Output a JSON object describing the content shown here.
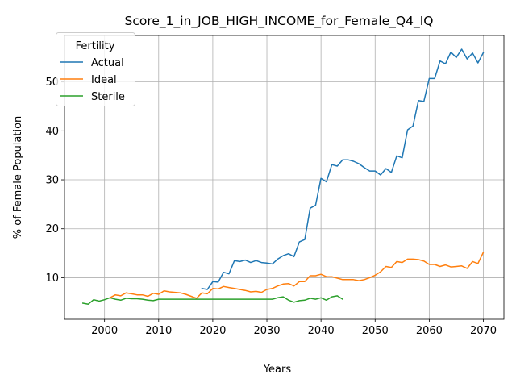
{
  "chart_data": {
    "type": "line",
    "title": "Score_1_in_JOB_HIGH_INCOME_for_Female_Q4_IQ",
    "xlabel": "Years",
    "ylabel": "% of Female Population",
    "xlim": [
      1992.6,
      2073.8
    ],
    "ylim": [
      1.5,
      59.5
    ],
    "xticks": [
      2000,
      2010,
      2020,
      2030,
      2040,
      2050,
      2060,
      2070
    ],
    "yticks": [
      10,
      20,
      30,
      40,
      50
    ],
    "grid": true,
    "legend": {
      "title": "Fertility",
      "placement": "top-left"
    },
    "series": [
      {
        "name": "Actual",
        "color": "#1f77b4",
        "x": [
          2018,
          2019,
          2020,
          2021,
          2022,
          2023,
          2024,
          2025,
          2026,
          2027,
          2028,
          2029,
          2030,
          2031,
          2032,
          2033,
          2034,
          2035,
          2036,
          2037,
          2038,
          2039,
          2040,
          2041,
          2042,
          2043,
          2044,
          2045,
          2046,
          2047,
          2048,
          2049,
          2050,
          2051,
          2052,
          2053,
          2054,
          2055,
          2056,
          2057,
          2058,
          2059,
          2060,
          2061,
          2062,
          2063,
          2064,
          2065,
          2066,
          2067,
          2068,
          2069,
          2070
        ],
        "values": [
          7.8,
          7.6,
          9.2,
          9.1,
          11.1,
          10.8,
          13.5,
          13.3,
          13.6,
          13.1,
          13.5,
          13.1,
          13.0,
          12.8,
          13.8,
          14.5,
          14.9,
          14.3,
          17.3,
          17.8,
          24.2,
          24.8,
          30.3,
          29.6,
          33.1,
          32.8,
          34.1,
          34.1,
          33.8,
          33.3,
          32.5,
          31.8,
          31.8,
          31.0,
          32.3,
          31.5,
          34.9,
          34.5,
          40.2,
          41.0,
          46.2,
          46.0,
          50.7,
          50.7,
          54.3,
          53.7,
          56.1,
          55.0,
          56.7,
          54.7,
          55.9,
          53.9,
          56.0
        ]
      },
      {
        "name": "Ideal",
        "color": "#ff7f0e",
        "x": [
          2001,
          2002,
          2003,
          2004,
          2005,
          2006,
          2007,
          2008,
          2009,
          2010,
          2011,
          2012,
          2013,
          2014,
          2015,
          2016,
          2017,
          2018,
          2019,
          2020,
          2021,
          2022,
          2023,
          2024,
          2025,
          2026,
          2027,
          2028,
          2029,
          2030,
          2031,
          2032,
          2033,
          2034,
          2035,
          2036,
          2037,
          2038,
          2039,
          2040,
          2041,
          2042,
          2043,
          2044,
          2045,
          2046,
          2047,
          2048,
          2049,
          2050,
          2051,
          2052,
          2053,
          2054,
          2055,
          2056,
          2057,
          2058,
          2059,
          2060,
          2061,
          2062,
          2063,
          2064,
          2065,
          2066,
          2067,
          2068,
          2069,
          2070
        ],
        "values": [
          5.9,
          6.5,
          6.3,
          6.9,
          6.7,
          6.5,
          6.5,
          6.2,
          6.8,
          6.6,
          7.3,
          7.1,
          7.0,
          6.9,
          6.6,
          6.2,
          5.8,
          6.9,
          6.7,
          7.8,
          7.7,
          8.2,
          8.0,
          7.8,
          7.6,
          7.4,
          7.1,
          7.2,
          7.0,
          7.6,
          7.8,
          8.3,
          8.7,
          8.8,
          8.3,
          9.2,
          9.2,
          10.4,
          10.4,
          10.7,
          10.2,
          10.2,
          9.9,
          9.6,
          9.6,
          9.6,
          9.4,
          9.6,
          10.0,
          10.5,
          11.2,
          12.3,
          12.1,
          13.3,
          13.1,
          13.8,
          13.8,
          13.7,
          13.4,
          12.7,
          12.7,
          12.3,
          12.6,
          12.2,
          12.3,
          12.4,
          11.9,
          13.3,
          12.9,
          15.2
        ]
      },
      {
        "name": "Sterile",
        "color": "#2ca02c",
        "x": [
          1996,
          1997,
          1998,
          1999,
          2000,
          2001,
          2002,
          2003,
          2004,
          2005,
          2006,
          2007,
          2008,
          2009,
          2010,
          2011,
          2012,
          2013,
          2014,
          2015,
          2016,
          2017,
          2018,
          2019,
          2020,
          2021,
          2022,
          2023,
          2024,
          2025,
          2026,
          2027,
          2028,
          2029,
          2030,
          2031,
          2032,
          2033,
          2034,
          2035,
          2036,
          2037,
          2038,
          2039,
          2040,
          2041,
          2042,
          2043,
          2044
        ],
        "values": [
          4.8,
          4.6,
          5.5,
          5.2,
          5.5,
          5.9,
          5.6,
          5.4,
          5.8,
          5.7,
          5.7,
          5.6,
          5.4,
          5.3,
          5.6,
          5.6,
          5.6,
          5.6,
          5.6,
          5.6,
          5.6,
          5.6,
          5.6,
          5.6,
          5.6,
          5.6,
          5.6,
          5.6,
          5.6,
          5.6,
          5.6,
          5.6,
          5.6,
          5.6,
          5.6,
          5.6,
          5.9,
          6.1,
          5.4,
          5.0,
          5.3,
          5.4,
          5.8,
          5.6,
          5.9,
          5.4,
          6.1,
          6.3,
          5.6
        ]
      }
    ]
  }
}
